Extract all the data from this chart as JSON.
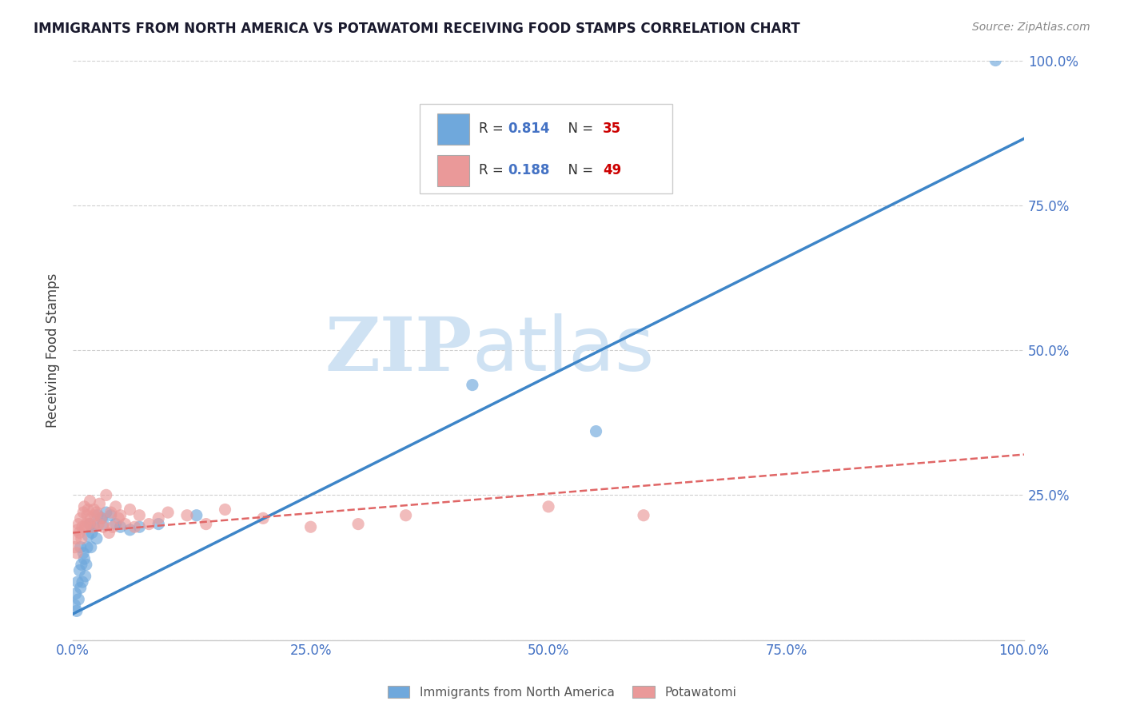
{
  "title": "IMMIGRANTS FROM NORTH AMERICA VS POTAWATOMI RECEIVING FOOD STAMPS CORRELATION CHART",
  "source": "Source: ZipAtlas.com",
  "ylabel": "Receiving Food Stamps",
  "xlim": [
    0,
    1.0
  ],
  "ylim": [
    0,
    1.0
  ],
  "blue_color": "#6fa8dc",
  "pink_color": "#ea9999",
  "blue_line_color": "#3d85c8",
  "pink_line_color": "#e06666",
  "R_blue": "0.814",
  "N_blue": "35",
  "R_pink": "0.188",
  "N_pink": "49",
  "legend_R_color": "#4472c4",
  "legend_N_color": "#cc0000",
  "watermark_zip": "ZIP",
  "watermark_atlas": "atlas",
  "watermark_color": "#cfe2f3",
  "background_color": "#ffffff",
  "grid_color": "#d0d0d0",
  "title_color": "#1a1a2e",
  "axis_tick_color": "#4472c4",
  "blue_scatter_x": [
    0.002,
    0.003,
    0.004,
    0.005,
    0.006,
    0.007,
    0.008,
    0.008,
    0.009,
    0.01,
    0.011,
    0.012,
    0.013,
    0.014,
    0.015,
    0.016,
    0.018,
    0.019,
    0.02,
    0.022,
    0.025,
    0.026,
    0.03,
    0.032,
    0.035,
    0.04,
    0.045,
    0.05,
    0.06,
    0.07,
    0.09,
    0.13,
    0.42,
    0.55,
    0.97
  ],
  "blue_scatter_y": [
    0.06,
    0.08,
    0.05,
    0.1,
    0.07,
    0.12,
    0.09,
    0.16,
    0.13,
    0.1,
    0.15,
    0.14,
    0.11,
    0.13,
    0.16,
    0.18,
    0.2,
    0.16,
    0.185,
    0.195,
    0.175,
    0.215,
    0.21,
    0.2,
    0.22,
    0.215,
    0.2,
    0.195,
    0.19,
    0.195,
    0.2,
    0.215,
    0.44,
    0.36,
    1.0
  ],
  "pink_scatter_x": [
    0.002,
    0.003,
    0.004,
    0.005,
    0.006,
    0.007,
    0.008,
    0.009,
    0.01,
    0.011,
    0.012,
    0.013,
    0.014,
    0.015,
    0.016,
    0.017,
    0.018,
    0.019,
    0.02,
    0.022,
    0.023,
    0.025,
    0.027,
    0.028,
    0.03,
    0.032,
    0.035,
    0.038,
    0.04,
    0.042,
    0.045,
    0.048,
    0.05,
    0.055,
    0.06,
    0.065,
    0.07,
    0.08,
    0.09,
    0.1,
    0.12,
    0.14,
    0.16,
    0.2,
    0.25,
    0.3,
    0.35,
    0.5,
    0.6
  ],
  "pink_scatter_y": [
    0.16,
    0.175,
    0.15,
    0.19,
    0.2,
    0.185,
    0.21,
    0.175,
    0.195,
    0.22,
    0.23,
    0.195,
    0.2,
    0.215,
    0.225,
    0.2,
    0.24,
    0.21,
    0.195,
    0.225,
    0.215,
    0.22,
    0.2,
    0.235,
    0.21,
    0.195,
    0.25,
    0.185,
    0.22,
    0.195,
    0.23,
    0.21,
    0.215,
    0.2,
    0.225,
    0.195,
    0.215,
    0.2,
    0.21,
    0.22,
    0.215,
    0.2,
    0.225,
    0.21,
    0.195,
    0.2,
    0.215,
    0.23,
    0.215
  ],
  "blue_line_x0": 0.0,
  "blue_line_y0": 0.045,
  "blue_line_x1": 1.0,
  "blue_line_y1": 0.865,
  "pink_line_x0": 0.0,
  "pink_line_y0": 0.185,
  "pink_line_x1": 1.0,
  "pink_line_y1": 0.32
}
